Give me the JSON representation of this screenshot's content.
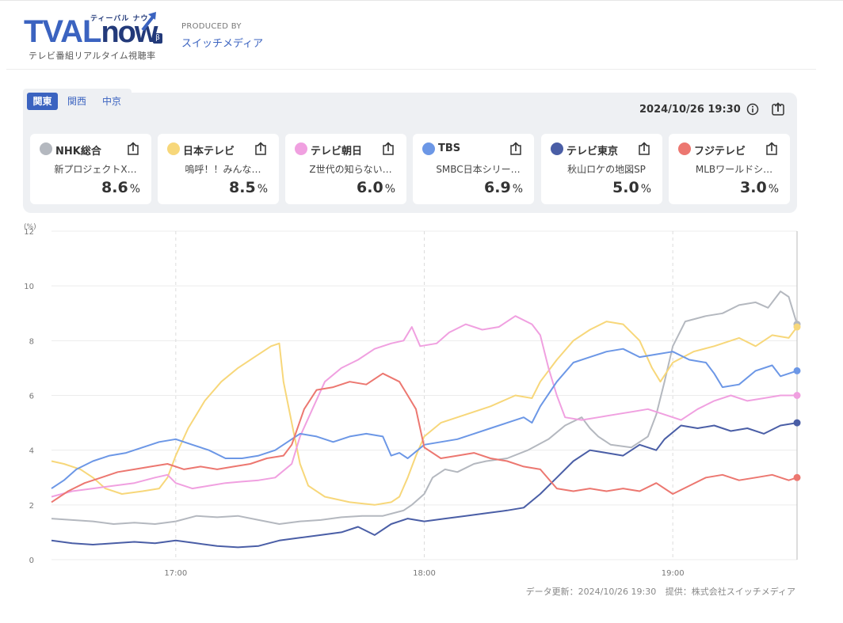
{
  "header": {
    "logo_text": "TVAL",
    "logo_now": "now",
    "logo_kana": "ティーバル ナウ",
    "logo_beta": "β",
    "logo_subtitle": "テレビ番組リアルタイム視聴率",
    "produced_by": "PRODUCED BY",
    "producer": "スイッチメディア"
  },
  "regions": [
    {
      "label": "関東",
      "active": true
    },
    {
      "label": "関西",
      "active": false
    },
    {
      "label": "中京",
      "active": false
    }
  ],
  "datetime": "2024/10/26 19:30",
  "icons": {
    "info": "info-icon",
    "share": "share-icon"
  },
  "channels": [
    {
      "name": "NHK総合",
      "program": "新プロジェクトX…",
      "rating": "8.6",
      "unit": "%",
      "color": "#b4b8bf"
    },
    {
      "name": "日本テレビ",
      "program": "嗚呼！！みんな…",
      "rating": "8.5",
      "unit": "%",
      "color": "#f7d77a"
    },
    {
      "name": "テレビ朝日",
      "program": "Z世代の知らない…",
      "rating": "6.0",
      "unit": "%",
      "color": "#f0a0e0"
    },
    {
      "name": "TBS",
      "program": "SMBC日本シリー…",
      "rating": "6.9",
      "unit": "%",
      "color": "#6c97e6"
    },
    {
      "name": "テレビ東京",
      "program": "秋山ロケの地図SP",
      "rating": "5.0",
      "unit": "%",
      "color": "#4a5ea6"
    },
    {
      "name": "フジテレビ",
      "program": "MLBワールドシ…",
      "rating": "3.0",
      "unit": "%",
      "color": "#ec7770"
    }
  ],
  "footer": {
    "updated": "データ更新：2024/10/26 19:30",
    "provider": "提供：株式会社スイッチメディア"
  },
  "chart_data": {
    "type": "line",
    "title": "",
    "xlabel": "",
    "ylabel": "(%)",
    "ylim": [
      0,
      12
    ],
    "yticks": [
      0,
      2,
      4,
      6,
      8,
      10,
      12
    ],
    "xlim": [
      990,
      1170
    ],
    "xticks": [
      {
        "t": 1020,
        "label": "17:00"
      },
      {
        "t": 1080,
        "label": "18:00"
      },
      {
        "t": 1140,
        "label": "19:00"
      }
    ],
    "x_unit": "minutes since 00:00",
    "series": [
      {
        "name": "NHK総合",
        "color": "#b4b8bf",
        "points": [
          [
            990,
            1.5
          ],
          [
            995,
            1.45
          ],
          [
            1000,
            1.4
          ],
          [
            1005,
            1.3
          ],
          [
            1010,
            1.35
          ],
          [
            1015,
            1.3
          ],
          [
            1020,
            1.4
          ],
          [
            1025,
            1.6
          ],
          [
            1030,
            1.55
          ],
          [
            1035,
            1.6
          ],
          [
            1040,
            1.45
          ],
          [
            1045,
            1.3
          ],
          [
            1050,
            1.4
          ],
          [
            1055,
            1.45
          ],
          [
            1060,
            1.55
          ],
          [
            1065,
            1.6
          ],
          [
            1070,
            1.6
          ],
          [
            1075,
            1.8
          ],
          [
            1077,
            2.0
          ],
          [
            1080,
            2.4
          ],
          [
            1082,
            3.0
          ],
          [
            1085,
            3.3
          ],
          [
            1088,
            3.2
          ],
          [
            1092,
            3.5
          ],
          [
            1095,
            3.6
          ],
          [
            1100,
            3.7
          ],
          [
            1105,
            4.0
          ],
          [
            1110,
            4.4
          ],
          [
            1114,
            4.9
          ],
          [
            1118,
            5.2
          ],
          [
            1120,
            4.8
          ],
          [
            1122,
            4.5
          ],
          [
            1125,
            4.2
          ],
          [
            1130,
            4.1
          ],
          [
            1134,
            4.5
          ],
          [
            1136,
            5.3
          ],
          [
            1138,
            6.5
          ],
          [
            1140,
            7.8
          ],
          [
            1143,
            8.7
          ],
          [
            1148,
            8.9
          ],
          [
            1152,
            9.0
          ],
          [
            1156,
            9.3
          ],
          [
            1160,
            9.4
          ],
          [
            1163,
            9.2
          ],
          [
            1166,
            9.8
          ],
          [
            1168,
            9.6
          ],
          [
            1170,
            8.6
          ]
        ]
      },
      {
        "name": "日本テレビ",
        "color": "#f7d77a",
        "points": [
          [
            990,
            3.6
          ],
          [
            993,
            3.5
          ],
          [
            997,
            3.3
          ],
          [
            1000,
            3.0
          ],
          [
            1003,
            2.6
          ],
          [
            1007,
            2.4
          ],
          [
            1012,
            2.5
          ],
          [
            1016,
            2.6
          ],
          [
            1018,
            3.0
          ],
          [
            1020,
            3.8
          ],
          [
            1023,
            4.8
          ],
          [
            1027,
            5.8
          ],
          [
            1031,
            6.5
          ],
          [
            1035,
            7.0
          ],
          [
            1039,
            7.4
          ],
          [
            1043,
            7.8
          ],
          [
            1045,
            7.9
          ],
          [
            1046,
            6.5
          ],
          [
            1048,
            5.0
          ],
          [
            1050,
            3.5
          ],
          [
            1052,
            2.7
          ],
          [
            1056,
            2.3
          ],
          [
            1062,
            2.1
          ],
          [
            1068,
            2.0
          ],
          [
            1072,
            2.1
          ],
          [
            1074,
            2.3
          ],
          [
            1076,
            3.0
          ],
          [
            1078,
            3.8
          ],
          [
            1080,
            4.5
          ],
          [
            1084,
            5.0
          ],
          [
            1090,
            5.3
          ],
          [
            1096,
            5.6
          ],
          [
            1102,
            6.0
          ],
          [
            1106,
            5.9
          ],
          [
            1108,
            6.5
          ],
          [
            1112,
            7.3
          ],
          [
            1116,
            8.0
          ],
          [
            1120,
            8.4
          ],
          [
            1124,
            8.7
          ],
          [
            1128,
            8.6
          ],
          [
            1132,
            8.0
          ],
          [
            1135,
            7.0
          ],
          [
            1137,
            6.5
          ],
          [
            1140,
            7.2
          ],
          [
            1145,
            7.6
          ],
          [
            1150,
            7.8
          ],
          [
            1156,
            8.1
          ],
          [
            1160,
            7.8
          ],
          [
            1164,
            8.2
          ],
          [
            1168,
            8.1
          ],
          [
            1170,
            8.5
          ]
        ]
      },
      {
        "name": "テレビ朝日",
        "color": "#f0a0e0",
        "points": [
          [
            990,
            2.3
          ],
          [
            995,
            2.5
          ],
          [
            1000,
            2.6
          ],
          [
            1005,
            2.7
          ],
          [
            1010,
            2.8
          ],
          [
            1015,
            3.0
          ],
          [
            1018,
            3.1
          ],
          [
            1020,
            2.8
          ],
          [
            1024,
            2.6
          ],
          [
            1028,
            2.7
          ],
          [
            1032,
            2.8
          ],
          [
            1036,
            2.85
          ],
          [
            1040,
            2.9
          ],
          [
            1044,
            3.0
          ],
          [
            1048,
            3.5
          ],
          [
            1050,
            4.5
          ],
          [
            1053,
            5.5
          ],
          [
            1056,
            6.5
          ],
          [
            1060,
            7.0
          ],
          [
            1064,
            7.3
          ],
          [
            1068,
            7.7
          ],
          [
            1072,
            7.9
          ],
          [
            1075,
            8.0
          ],
          [
            1077,
            8.5
          ],
          [
            1079,
            7.8
          ],
          [
            1083,
            7.9
          ],
          [
            1086,
            8.3
          ],
          [
            1090,
            8.6
          ],
          [
            1094,
            8.4
          ],
          [
            1098,
            8.5
          ],
          [
            1102,
            8.9
          ],
          [
            1106,
            8.6
          ],
          [
            1108,
            8.2
          ],
          [
            1110,
            7.0
          ],
          [
            1112,
            6.0
          ],
          [
            1114,
            5.2
          ],
          [
            1118,
            5.1
          ],
          [
            1122,
            5.2
          ],
          [
            1126,
            5.3
          ],
          [
            1130,
            5.4
          ],
          [
            1134,
            5.5
          ],
          [
            1138,
            5.3
          ],
          [
            1142,
            5.1
          ],
          [
            1146,
            5.5
          ],
          [
            1150,
            5.8
          ],
          [
            1154,
            6.0
          ],
          [
            1158,
            5.8
          ],
          [
            1162,
            5.9
          ],
          [
            1166,
            6.0
          ],
          [
            1170,
            6.0
          ]
        ]
      },
      {
        "name": "TBS",
        "color": "#6c97e6",
        "points": [
          [
            990,
            2.6
          ],
          [
            993,
            2.9
          ],
          [
            996,
            3.3
          ],
          [
            1000,
            3.6
          ],
          [
            1004,
            3.8
          ],
          [
            1008,
            3.9
          ],
          [
            1012,
            4.1
          ],
          [
            1016,
            4.3
          ],
          [
            1020,
            4.4
          ],
          [
            1024,
            4.2
          ],
          [
            1028,
            4.0
          ],
          [
            1032,
            3.7
          ],
          [
            1036,
            3.7
          ],
          [
            1040,
            3.8
          ],
          [
            1044,
            4.0
          ],
          [
            1048,
            4.4
          ],
          [
            1050,
            4.6
          ],
          [
            1054,
            4.5
          ],
          [
            1058,
            4.3
          ],
          [
            1062,
            4.5
          ],
          [
            1066,
            4.6
          ],
          [
            1070,
            4.5
          ],
          [
            1072,
            3.8
          ],
          [
            1074,
            3.9
          ],
          [
            1076,
            3.7
          ],
          [
            1080,
            4.2
          ],
          [
            1084,
            4.3
          ],
          [
            1088,
            4.4
          ],
          [
            1092,
            4.6
          ],
          [
            1096,
            4.8
          ],
          [
            1100,
            5.0
          ],
          [
            1104,
            5.2
          ],
          [
            1106,
            5.0
          ],
          [
            1108,
            5.6
          ],
          [
            1112,
            6.5
          ],
          [
            1116,
            7.2
          ],
          [
            1120,
            7.4
          ],
          [
            1124,
            7.6
          ],
          [
            1128,
            7.7
          ],
          [
            1132,
            7.4
          ],
          [
            1136,
            7.5
          ],
          [
            1140,
            7.6
          ],
          [
            1144,
            7.3
          ],
          [
            1148,
            7.2
          ],
          [
            1150,
            6.8
          ],
          [
            1152,
            6.3
          ],
          [
            1156,
            6.4
          ],
          [
            1160,
            6.9
          ],
          [
            1164,
            7.1
          ],
          [
            1166,
            6.7
          ],
          [
            1170,
            6.9
          ]
        ]
      },
      {
        "name": "テレビ東京",
        "color": "#4a5ea6",
        "points": [
          [
            990,
            0.7
          ],
          [
            995,
            0.6
          ],
          [
            1000,
            0.55
          ],
          [
            1005,
            0.6
          ],
          [
            1010,
            0.65
          ],
          [
            1015,
            0.6
          ],
          [
            1020,
            0.7
          ],
          [
            1025,
            0.6
          ],
          [
            1030,
            0.5
          ],
          [
            1035,
            0.45
          ],
          [
            1040,
            0.5
          ],
          [
            1045,
            0.7
          ],
          [
            1050,
            0.8
          ],
          [
            1055,
            0.9
          ],
          [
            1060,
            1.0
          ],
          [
            1064,
            1.2
          ],
          [
            1068,
            0.9
          ],
          [
            1072,
            1.3
          ],
          [
            1076,
            1.5
          ],
          [
            1080,
            1.4
          ],
          [
            1085,
            1.5
          ],
          [
            1090,
            1.6
          ],
          [
            1095,
            1.7
          ],
          [
            1100,
            1.8
          ],
          [
            1104,
            1.9
          ],
          [
            1108,
            2.4
          ],
          [
            1112,
            3.0
          ],
          [
            1116,
            3.6
          ],
          [
            1120,
            4.0
          ],
          [
            1124,
            3.9
          ],
          [
            1128,
            3.8
          ],
          [
            1132,
            4.2
          ],
          [
            1136,
            4.0
          ],
          [
            1138,
            4.4
          ],
          [
            1142,
            4.9
          ],
          [
            1146,
            4.8
          ],
          [
            1150,
            4.9
          ],
          [
            1154,
            4.7
          ],
          [
            1158,
            4.8
          ],
          [
            1162,
            4.6
          ],
          [
            1166,
            4.9
          ],
          [
            1170,
            5.0
          ]
        ]
      },
      {
        "name": "フジテレビ",
        "color": "#ec7770",
        "points": [
          [
            990,
            2.1
          ],
          [
            994,
            2.5
          ],
          [
            998,
            2.8
          ],
          [
            1002,
            3.0
          ],
          [
            1006,
            3.2
          ],
          [
            1010,
            3.3
          ],
          [
            1014,
            3.4
          ],
          [
            1018,
            3.5
          ],
          [
            1022,
            3.3
          ],
          [
            1026,
            3.4
          ],
          [
            1030,
            3.3
          ],
          [
            1034,
            3.4
          ],
          [
            1038,
            3.5
          ],
          [
            1042,
            3.7
          ],
          [
            1046,
            3.8
          ],
          [
            1048,
            4.2
          ],
          [
            1051,
            5.5
          ],
          [
            1054,
            6.2
          ],
          [
            1058,
            6.3
          ],
          [
            1062,
            6.5
          ],
          [
            1066,
            6.4
          ],
          [
            1070,
            6.8
          ],
          [
            1074,
            6.5
          ],
          [
            1076,
            6.0
          ],
          [
            1078,
            5.5
          ],
          [
            1080,
            4.1
          ],
          [
            1084,
            3.7
          ],
          [
            1088,
            3.8
          ],
          [
            1092,
            3.9
          ],
          [
            1096,
            3.7
          ],
          [
            1100,
            3.6
          ],
          [
            1104,
            3.4
          ],
          [
            1108,
            3.3
          ],
          [
            1112,
            2.6
          ],
          [
            1116,
            2.5
          ],
          [
            1120,
            2.6
          ],
          [
            1124,
            2.5
          ],
          [
            1128,
            2.6
          ],
          [
            1132,
            2.5
          ],
          [
            1136,
            2.8
          ],
          [
            1140,
            2.4
          ],
          [
            1144,
            2.7
          ],
          [
            1148,
            3.0
          ],
          [
            1152,
            3.1
          ],
          [
            1156,
            2.9
          ],
          [
            1160,
            3.0
          ],
          [
            1164,
            3.1
          ],
          [
            1168,
            2.9
          ],
          [
            1170,
            3.0
          ]
        ]
      }
    ]
  }
}
